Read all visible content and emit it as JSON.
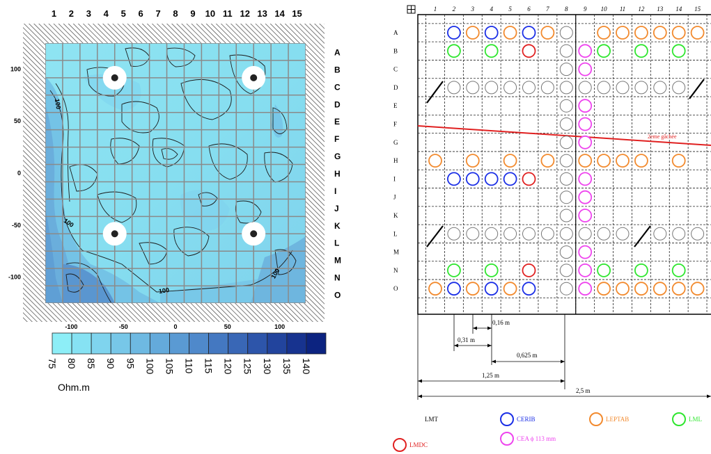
{
  "left_map": {
    "columns": [
      "1",
      "2",
      "3",
      "4",
      "5",
      "6",
      "7",
      "8",
      "9",
      "10",
      "11",
      "12",
      "13",
      "14",
      "15"
    ],
    "rows": [
      "A",
      "B",
      "C",
      "D",
      "E",
      "F",
      "G",
      "H",
      "I",
      "J",
      "K",
      "L",
      "M",
      "N",
      "O"
    ],
    "y_ticks": [
      "100",
      "50",
      "0",
      "-50",
      "-100"
    ],
    "x_ticks": [
      "-100",
      "-50",
      "0",
      "50",
      "100"
    ],
    "contour_labels": [
      "100",
      "100",
      "100",
      "100"
    ],
    "colorbar": {
      "ticks": [
        "75",
        "80",
        "85",
        "90",
        "95",
        "100",
        "105",
        "110",
        "115",
        "120",
        "125",
        "130",
        "135",
        "140"
      ],
      "colors": [
        "#8deef7",
        "#86e2f3",
        "#7fd4ee",
        "#77c7e8",
        "#6eb9e2",
        "#64aadb",
        "#5a9ad3",
        "#4f89cb",
        "#4478c1",
        "#3967b6",
        "#2d55aa",
        "#22449d",
        "#17338f",
        "#0c2380"
      ],
      "unit": "Ohm.m"
    }
  },
  "right_plan": {
    "columns": [
      "1",
      "2",
      "3",
      "4",
      "5",
      "6",
      "7",
      "8",
      "9",
      "10",
      "11",
      "12",
      "13",
      "14",
      "15"
    ],
    "rows": [
      "A",
      "B",
      "C",
      "D",
      "E",
      "F",
      "G",
      "H",
      "I",
      "J",
      "K",
      "L",
      "M",
      "N",
      "O"
    ],
    "crack_label": "2eme gâchée",
    "dimensions": [
      "0,16 m",
      "0,31 m",
      "0,625 m",
      "1,25 m",
      "2,5 m"
    ],
    "legend": [
      {
        "label": "LMT",
        "color": ""
      },
      {
        "label": "CERIB",
        "color": "#1a2ee6"
      },
      {
        "label": "LEPTAB",
        "color": "#f28a2e"
      },
      {
        "label": "LML",
        "color": "#2ee62e"
      },
      {
        "label": "LMDC",
        "color": "#e02020"
      },
      {
        "label": "CEA ϕ 113 mm",
        "color": "#ee44ee"
      }
    ],
    "colors": {
      "grey": "#777777",
      "blue": "#1a2ee6",
      "orange": "#f28a2e",
      "green": "#2ee62e",
      "red": "#e02020",
      "magenta": "#ee44ee",
      "crack": "#e02020"
    }
  }
}
